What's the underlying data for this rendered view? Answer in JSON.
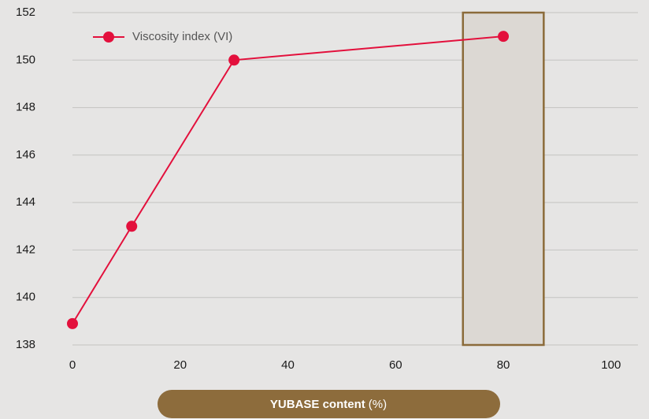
{
  "chart_data": {
    "type": "line",
    "x_label": "YUBASE content",
    "x_label_unit": "(%)",
    "series": [
      {
        "name": "Viscosity index (VI)",
        "color": "#e3103c",
        "x": [
          0,
          11,
          30,
          80
        ],
        "values": [
          138.9,
          143,
          150,
          151
        ]
      }
    ],
    "xlim": [
      0,
      105
    ],
    "xticks": [
      0,
      20,
      40,
      60,
      80,
      100
    ],
    "ylim": [
      138,
      152
    ],
    "yticks": [
      138,
      140,
      142,
      144,
      146,
      148,
      150,
      152
    ],
    "highlight_x": [
      72.5,
      87.5
    ],
    "highlight_fill": "#dcd8d3",
    "highlight_stroke": "#8b6b3a",
    "grid": true,
    "legend": "top-left"
  }
}
